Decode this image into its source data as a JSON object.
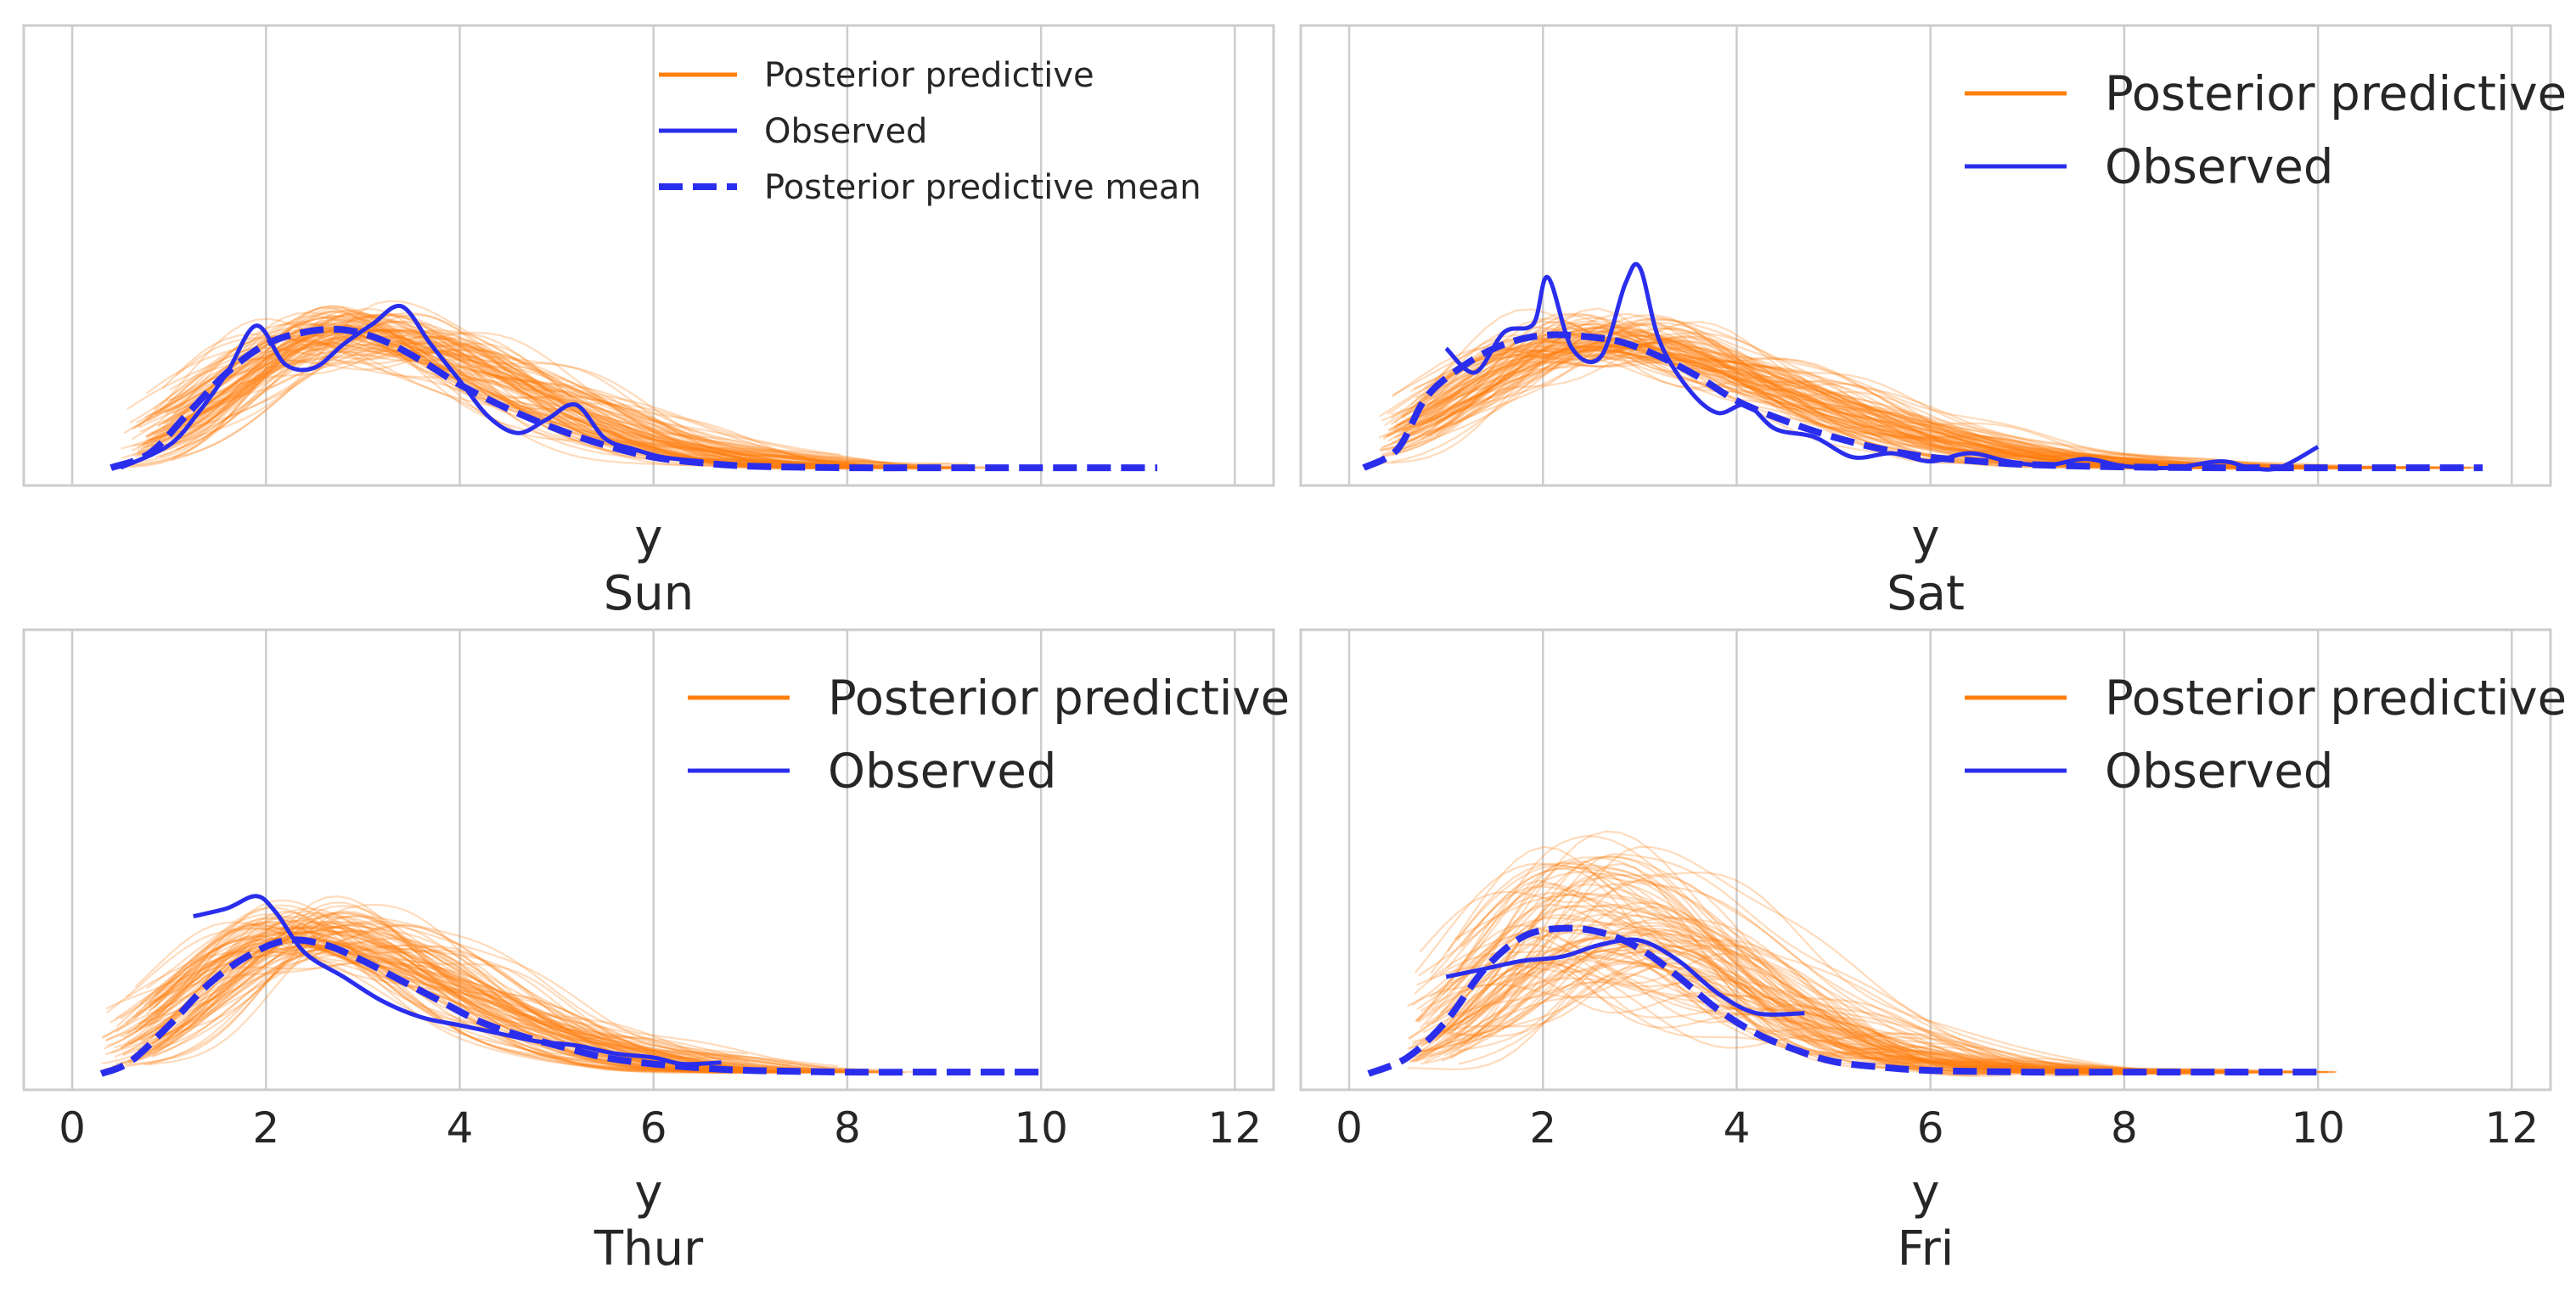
{
  "colors": {
    "posterior": "#ff7f0e",
    "observed": "#2a2eec",
    "grid": "#cccccc",
    "text": "#262626"
  },
  "chart_data": [
    {
      "type": "line",
      "panel": "Sun",
      "xlabel": "y",
      "title": "Sun",
      "xlim": [
        -0.5,
        12.4
      ],
      "xticks": [
        0,
        2,
        4,
        6,
        8,
        10,
        12
      ],
      "show_xticklabels": false,
      "ylim": [
        0,
        0.57
      ],
      "grid": "vertical",
      "legend": {
        "placement": "top-center",
        "size": "small",
        "entries": [
          {
            "label": "Posterior predictive",
            "style": "solid",
            "color": "#ff7f0e"
          },
          {
            "label": "Observed",
            "style": "solid",
            "color": "#2a2eec"
          },
          {
            "label": "Posterior predictive mean",
            "style": "dashed",
            "color": "#2a2eec"
          }
        ]
      },
      "posterior_draws": {
        "count": 90,
        "x_range": [
          0.5,
          9.5
        ],
        "center": 2.75,
        "spread_left": 1.15,
        "spread_right": 1.75,
        "peak": 0.188,
        "peak_jitter": 0.02
      },
      "observed": {
        "x": [
          0.5,
          1.0,
          1.3,
          1.6,
          1.9,
          2.2,
          2.5,
          2.8,
          3.1,
          3.4,
          3.7,
          4.0,
          4.3,
          4.6,
          4.9,
          5.2,
          5.5,
          5.8,
          6.1,
          6.5
        ],
        "y": [
          0.022,
          0.05,
          0.09,
          0.14,
          0.198,
          0.15,
          0.146,
          0.175,
          0.2,
          0.222,
          0.175,
          0.13,
          0.085,
          0.065,
          0.082,
          0.1,
          0.058,
          0.045,
          0.035,
          0.03
        ]
      },
      "mean": {
        "x": [
          0.4,
          0.8,
          1.2,
          1.6,
          2.0,
          2.4,
          2.8,
          3.2,
          3.6,
          4.0,
          4.5,
          5.0,
          5.5,
          6.0,
          6.5,
          7.0,
          8.0,
          9.0,
          10.0,
          11.2
        ],
        "y": [
          0.022,
          0.04,
          0.09,
          0.14,
          0.175,
          0.19,
          0.193,
          0.18,
          0.155,
          0.125,
          0.095,
          0.07,
          0.05,
          0.035,
          0.028,
          0.024,
          0.022,
          0.022,
          0.022,
          0.022
        ]
      }
    },
    {
      "type": "line",
      "panel": "Sat",
      "xlabel": "y",
      "title": "Sat",
      "xlim": [
        -0.5,
        12.4
      ],
      "xticks": [
        0,
        2,
        4,
        6,
        8,
        10,
        12
      ],
      "show_xticklabels": false,
      "ylim": [
        0,
        0.57
      ],
      "grid": "vertical",
      "legend": {
        "placement": "top-right",
        "size": "large",
        "entries": [
          {
            "label": "Posterior predictive",
            "style": "solid",
            "color": "#ff7f0e"
          },
          {
            "label": "Observed",
            "style": "solid",
            "color": "#2a2eec"
          }
        ]
      },
      "posterior_draws": {
        "count": 90,
        "x_range": [
          0.3,
          11.7
        ],
        "center": 2.5,
        "spread_left": 1.2,
        "spread_right": 2.0,
        "peak": 0.18,
        "peak_jitter": 0.02
      },
      "observed": {
        "x": [
          1.0,
          1.3,
          1.6,
          1.9,
          2.05,
          2.3,
          2.6,
          2.85,
          3.0,
          3.2,
          3.5,
          3.8,
          4.1,
          4.4,
          4.8,
          5.2,
          5.6,
          6.0,
          6.4,
          6.8,
          7.2,
          7.6,
          8.0,
          8.5,
          9.0,
          9.3,
          9.6,
          10.0
        ],
        "y": [
          0.17,
          0.14,
          0.19,
          0.2,
          0.258,
          0.17,
          0.16,
          0.25,
          0.27,
          0.18,
          0.12,
          0.09,
          0.1,
          0.07,
          0.06,
          0.035,
          0.04,
          0.03,
          0.04,
          0.03,
          0.025,
          0.033,
          0.024,
          0.022,
          0.03,
          0.022,
          0.022,
          0.048
        ]
      },
      "mean": {
        "x": [
          0.15,
          0.5,
          0.8,
          1.2,
          1.6,
          2.0,
          2.4,
          2.8,
          3.2,
          3.6,
          4.0,
          4.5,
          5.0,
          5.5,
          6.0,
          6.5,
          7.0,
          8.0,
          9.0,
          10.0,
          11.0,
          11.7
        ],
        "y": [
          0.022,
          0.045,
          0.11,
          0.15,
          0.175,
          0.186,
          0.185,
          0.178,
          0.16,
          0.135,
          0.105,
          0.08,
          0.06,
          0.045,
          0.035,
          0.03,
          0.026,
          0.023,
          0.022,
          0.022,
          0.022,
          0.022
        ]
      }
    },
    {
      "type": "line",
      "panel": "Thur",
      "xlabel": "y",
      "title": "Thur",
      "xlim": [
        -0.5,
        12.4
      ],
      "xticks": [
        0,
        2,
        4,
        6,
        8,
        10,
        12
      ],
      "show_xticklabels": true,
      "ylim": [
        0,
        0.57
      ],
      "grid": "vertical",
      "legend": {
        "placement": "top-right",
        "size": "large",
        "entries": [
          {
            "label": "Posterior predictive",
            "style": "solid",
            "color": "#ff7f0e"
          },
          {
            "label": "Observed",
            "style": "solid",
            "color": "#2a2eec"
          }
        ]
      },
      "posterior_draws": {
        "count": 90,
        "x_range": [
          0.3,
          8.8
        ],
        "center": 2.4,
        "spread_left": 1.05,
        "spread_right": 1.6,
        "peak": 0.195,
        "peak_jitter": 0.022
      },
      "observed": {
        "x": [
          1.25,
          1.6,
          1.9,
          2.1,
          2.4,
          2.8,
          3.2,
          3.6,
          4.0,
          4.4,
          4.8,
          5.2,
          5.6,
          6.0,
          6.3,
          6.7
        ],
        "y": [
          0.215,
          0.225,
          0.24,
          0.22,
          0.17,
          0.14,
          0.11,
          0.09,
          0.08,
          0.07,
          0.06,
          0.055,
          0.045,
          0.04,
          0.032,
          0.034
        ]
      },
      "mean": {
        "x": [
          0.3,
          0.6,
          1.0,
          1.4,
          1.8,
          2.2,
          2.6,
          3.0,
          3.4,
          3.8,
          4.2,
          4.6,
          5.0,
          5.5,
          6.0,
          6.5,
          7.0,
          8.0,
          9.0,
          10.0
        ],
        "y": [
          0.02,
          0.035,
          0.08,
          0.13,
          0.165,
          0.185,
          0.18,
          0.16,
          0.135,
          0.11,
          0.085,
          0.068,
          0.055,
          0.04,
          0.032,
          0.027,
          0.024,
          0.022,
          0.022,
          0.022
        ]
      }
    },
    {
      "type": "line",
      "panel": "Fri",
      "xlabel": "y",
      "title": "Fri",
      "xlim": [
        -0.5,
        12.4
      ],
      "xticks": [
        0,
        2,
        4,
        6,
        8,
        10,
        12
      ],
      "show_xticklabels": true,
      "ylim": [
        0,
        0.57
      ],
      "grid": "vertical",
      "legend": {
        "placement": "top-right",
        "size": "large",
        "entries": [
          {
            "label": "Posterior predictive",
            "style": "solid",
            "color": "#ff7f0e"
          },
          {
            "label": "Observed",
            "style": "solid",
            "color": "#2a2eec"
          }
        ]
      },
      "posterior_draws": {
        "count": 90,
        "x_range": [
          0.6,
          10.2
        ],
        "center": 2.5,
        "spread_left": 1.0,
        "spread_right": 1.6,
        "peak": 0.21,
        "peak_jitter": 0.09
      },
      "observed": {
        "x": [
          1.0,
          1.4,
          1.8,
          2.2,
          2.6,
          3.0,
          3.4,
          3.8,
          4.2,
          4.7
        ],
        "y": [
          0.14,
          0.15,
          0.16,
          0.165,
          0.18,
          0.185,
          0.16,
          0.12,
          0.095,
          0.095
        ]
      },
      "mean": {
        "x": [
          0.2,
          0.6,
          1.0,
          1.4,
          1.8,
          2.2,
          2.6,
          3.0,
          3.4,
          3.8,
          4.2,
          4.6,
          5.0,
          5.5,
          6.0,
          7.0,
          8.0,
          9.0,
          10.0
        ],
        "y": [
          0.02,
          0.04,
          0.085,
          0.15,
          0.19,
          0.2,
          0.195,
          0.175,
          0.14,
          0.1,
          0.07,
          0.05,
          0.035,
          0.028,
          0.024,
          0.022,
          0.022,
          0.022,
          0.022
        ]
      }
    }
  ]
}
